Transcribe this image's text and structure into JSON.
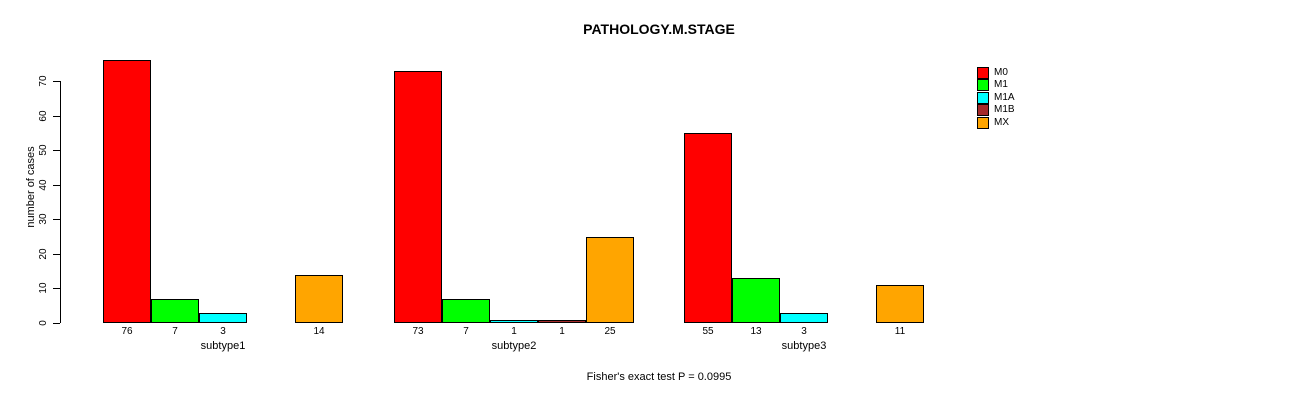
{
  "chart_data": {
    "type": "bar",
    "title": "PATHOLOGY.M.STAGE",
    "ylabel": "number of cases",
    "xlabel": "",
    "footer": "Fisher's exact test P = 0.0995",
    "categories": [
      "subtype1",
      "subtype2",
      "subtype3"
    ],
    "series": [
      {
        "name": "M0",
        "color": "#FF0000",
        "values": [
          76,
          73,
          55
        ]
      },
      {
        "name": "M1",
        "color": "#00FF00",
        "values": [
          7,
          7,
          13
        ]
      },
      {
        "name": "M1A",
        "color": "#00FFFF",
        "values": [
          3,
          1,
          3
        ]
      },
      {
        "name": "M1B",
        "color": "#A52A2A",
        "values": [
          0,
          1,
          0
        ]
      },
      {
        "name": "MX",
        "color": "#FFA500",
        "values": [
          14,
          25,
          11
        ]
      }
    ],
    "yticks": [
      0,
      10,
      20,
      30,
      40,
      50,
      60,
      70
    ],
    "ylim": [
      0,
      70
    ],
    "bar_value_labels_shown": true,
    "zero_values_unlabeled": true,
    "legend_position": "right-inside",
    "grid": false,
    "axis_color": "#000000",
    "background_color": "#FFFFFF"
  }
}
